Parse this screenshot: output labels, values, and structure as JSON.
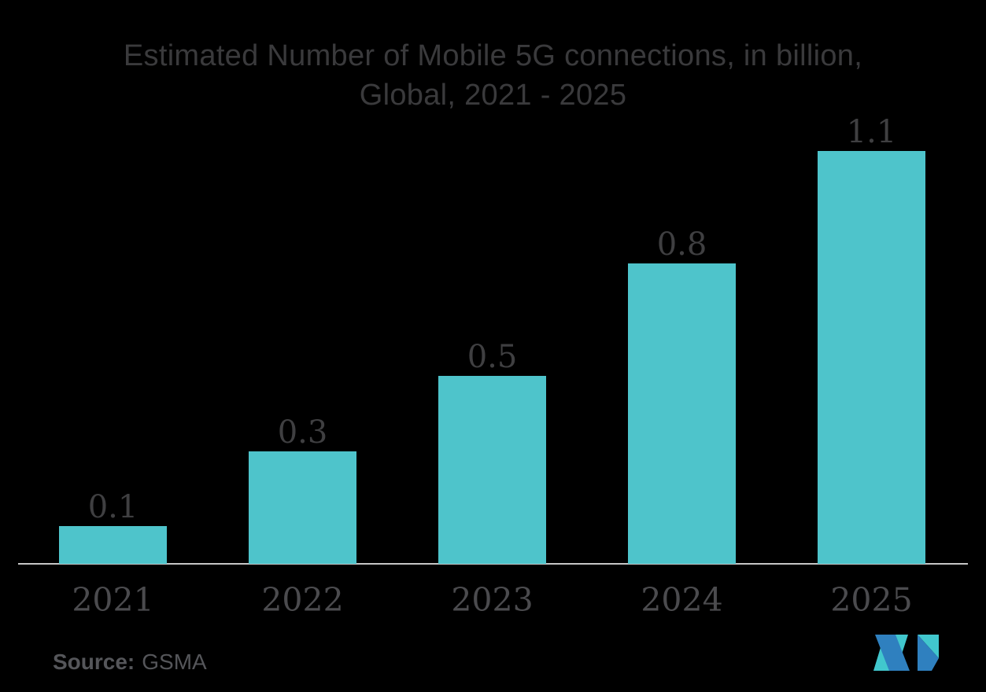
{
  "page": {
    "background_color": "#000000"
  },
  "chart_data": {
    "type": "bar",
    "title": "Estimated Number of Mobile 5G connections, in billion, Global, 2021 - 2025",
    "title_lines": [
      "Estimated Number of Mobile 5G connections, in billion,",
      "Global, 2021 - 2025"
    ],
    "categories": [
      "2021",
      "2022",
      "2023",
      "2024",
      "2025"
    ],
    "values": [
      0.1,
      0.3,
      0.5,
      0.8,
      1.1
    ],
    "value_labels": [
      "0.1",
      "0.3",
      "0.5",
      "0.8",
      "1.1"
    ],
    "unit": "billion",
    "xlabel": "",
    "ylabel": "",
    "ylim": [
      0,
      1.15
    ],
    "grid": false,
    "legend": "none",
    "bar_color": "#4EC4CB",
    "title_color": "#3A3A3C",
    "label_color": "#3F3F41",
    "tick_color": "#4B4B4E",
    "axis_line_color": "#C6C6C6"
  },
  "source": {
    "label": "Source:",
    "value": "GSMA",
    "color": "#55565A"
  },
  "logo": {
    "name": "mordor-intelligence-logo",
    "teal": "#41C7CD",
    "blue": "#2F80BF"
  }
}
